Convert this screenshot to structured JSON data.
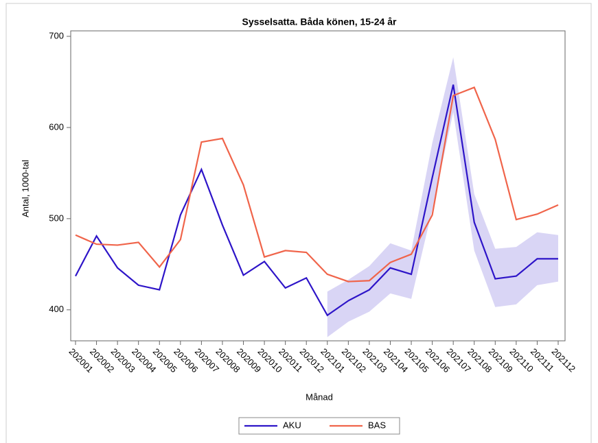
{
  "chart_data": {
    "type": "line",
    "title": "Sysselsatta. Båda könen, 15-24 år",
    "x_label": "Månad",
    "y_label": "Antal, 1000-tal",
    "categories": [
      "202001",
      "202002",
      "202003",
      "202004",
      "202005",
      "202006",
      "202007",
      "202008",
      "202009",
      "202010",
      "202011",
      "202012",
      "202101",
      "202102",
      "202103",
      "202104",
      "202105",
      "202106",
      "202107",
      "202108",
      "202109",
      "202110",
      "202111",
      "202112"
    ],
    "series": [
      {
        "name": "AKU",
        "color": "#2d14c8",
        "values": [
          437,
          481,
          446,
          427,
          422,
          504,
          554,
          493,
          438,
          453,
          424,
          435,
          394,
          410,
          422,
          446,
          439,
          545,
          647,
          496,
          434,
          437,
          456,
          456
        ],
        "band_color": "#d9d5f5",
        "lower": [
          null,
          null,
          null,
          null,
          null,
          null,
          null,
          null,
          null,
          null,
          null,
          null,
          370,
          387,
          398,
          418,
          412,
          510,
          617,
          465,
          403,
          406,
          427,
          431
        ],
        "upper": [
          null,
          null,
          null,
          null,
          null,
          null,
          null,
          null,
          null,
          null,
          null,
          null,
          420,
          433,
          448,
          473,
          465,
          583,
          677,
          527,
          467,
          469,
          485,
          482
        ]
      },
      {
        "name": "BAS",
        "color": "#f0644a",
        "values": [
          482,
          472,
          471,
          474,
          447,
          477,
          584,
          588,
          537,
          458,
          465,
          463,
          439,
          431,
          432,
          452,
          461,
          504,
          635,
          644,
          587,
          499,
          505,
          515
        ]
      }
    ],
    "ylim": [
      366,
      706
    ],
    "yticks": [
      400,
      500,
      600,
      700
    ]
  }
}
